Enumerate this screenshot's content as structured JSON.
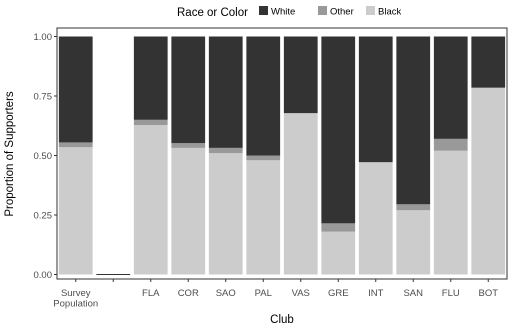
{
  "chart_data": {
    "type": "bar",
    "stacked": true,
    "orientation": "vertical",
    "xlabel": "Club",
    "ylabel": "Proportion of Supporters",
    "ylim": [
      0,
      1
    ],
    "y_ticks": [
      0.0,
      0.25,
      0.5,
      0.75,
      1.0
    ],
    "y_tick_labels": [
      "0.00",
      "0.25",
      "0.50",
      "0.75",
      "1.00"
    ],
    "grid": false,
    "legend": {
      "title": "Race or Color",
      "placement": "top",
      "entries": [
        "White",
        "Other",
        "Black"
      ]
    },
    "categories": [
      "Survey\nPopulation",
      "",
      "FLA",
      "COR",
      "SAO",
      "PAL",
      "VAS",
      "GRE",
      "INT",
      "SAN",
      "FLU",
      "BOT"
    ],
    "series": [
      {
        "name": "Black",
        "color": "#cccccc",
        "values": [
          0.535,
          0.0,
          0.628,
          0.532,
          0.51,
          0.48,
          0.678,
          0.18,
          0.472,
          0.27,
          0.52,
          0.785
        ]
      },
      {
        "name": "Other",
        "color": "#999999",
        "values": [
          0.02,
          0.0,
          0.022,
          0.02,
          0.022,
          0.02,
          0.0,
          0.035,
          0.0,
          0.025,
          0.05,
          0.0
        ]
      },
      {
        "name": "White",
        "color": "#333333",
        "values": [
          0.445,
          0.0,
          0.35,
          0.448,
          0.468,
          0.5,
          0.322,
          0.785,
          0.528,
          0.705,
          0.43,
          0.215
        ]
      }
    ]
  }
}
